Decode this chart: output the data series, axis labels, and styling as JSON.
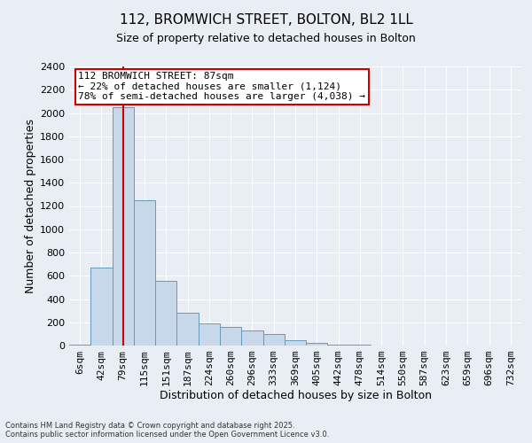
{
  "title1": "112, BROMWICH STREET, BOLTON, BL2 1LL",
  "title2": "Size of property relative to detached houses in Bolton",
  "xlabel": "Distribution of detached houses by size in Bolton",
  "ylabel": "Number of detached properties",
  "categories": [
    "6sqm",
    "42sqm",
    "79sqm",
    "115sqm",
    "151sqm",
    "187sqm",
    "224sqm",
    "260sqm",
    "296sqm",
    "333sqm",
    "369sqm",
    "405sqm",
    "442sqm",
    "478sqm",
    "514sqm",
    "550sqm",
    "587sqm",
    "623sqm",
    "659sqm",
    "696sqm",
    "732sqm"
  ],
  "values": [
    10,
    670,
    2050,
    1250,
    560,
    280,
    190,
    160,
    130,
    100,
    45,
    20,
    10,
    5,
    0,
    0,
    0,
    0,
    0,
    0,
    0
  ],
  "bar_color": "#c8d8eb",
  "bar_edge_color": "#6699bb",
  "red_line_index": 2,
  "ylim": [
    0,
    2400
  ],
  "yticks": [
    0,
    200,
    400,
    600,
    800,
    1000,
    1200,
    1400,
    1600,
    1800,
    2000,
    2200,
    2400
  ],
  "annotation_title": "112 BROMWICH STREET: 87sqm",
  "annotation_line1": "← 22% of detached houses are smaller (1,124)",
  "annotation_line2": "78% of semi-detached houses are larger (4,038) →",
  "annotation_box_color": "#ffffff",
  "annotation_box_edge": "#cc0000",
  "footer1": "Contains HM Land Registry data © Crown copyright and database right 2025.",
  "footer2": "Contains public sector information licensed under the Open Government Licence v3.0.",
  "background_color": "#e8eef4",
  "grid_color": "#ffffff",
  "title_fontsize": 11,
  "subtitle_fontsize": 9,
  "axis_label_fontsize": 9,
  "tick_fontsize": 8,
  "annot_fontsize": 8,
  "footer_fontsize": 6
}
